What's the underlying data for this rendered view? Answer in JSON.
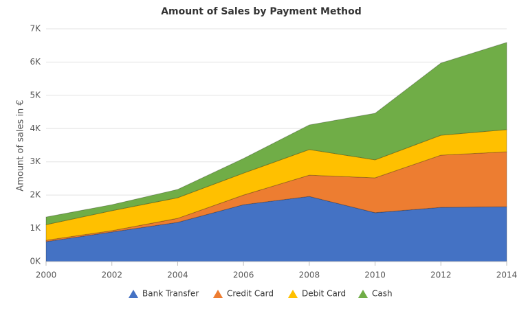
{
  "chart_data": {
    "type": "stacked-area",
    "title": "Amount of Sales by Payment Method",
    "y_label": "Amount of sales in €",
    "x": [
      2000,
      2002,
      2004,
      2006,
      2008,
      2010,
      2012,
      2014
    ],
    "xlim": [
      2000,
      2014
    ],
    "xticks": [
      2000,
      2002,
      2004,
      2006,
      2008,
      2010,
      2012,
      2014
    ],
    "ylim": [
      0,
      7000
    ],
    "yticks": [
      {
        "value": 0,
        "label": "0K"
      },
      {
        "value": 1000,
        "label": "1K"
      },
      {
        "value": 2000,
        "label": "2K"
      },
      {
        "value": 3000,
        "label": "3K"
      },
      {
        "value": 4000,
        "label": "4K"
      },
      {
        "value": 5000,
        "label": "5K"
      },
      {
        "value": 6000,
        "label": "6K"
      },
      {
        "value": 7000,
        "label": "7K"
      }
    ],
    "grid": true,
    "legend": "bottom",
    "series": [
      {
        "name": "Bank Transfer",
        "color": "#4472c4",
        "values": [
          600,
          890,
          1180,
          1710,
          1960,
          1470,
          1630,
          1650
        ]
      },
      {
        "name": "Credit Card",
        "color": "#ed7d31",
        "values": [
          40,
          40,
          120,
          290,
          640,
          1050,
          1570,
          1650
        ]
      },
      {
        "name": "Debit Card",
        "color": "#ffc000",
        "values": [
          470,
          600,
          620,
          660,
          770,
          540,
          600,
          670
        ]
      },
      {
        "name": "Cash",
        "color": "#70ad47",
        "values": [
          230,
          180,
          250,
          440,
          740,
          1400,
          2170,
          2620
        ]
      }
    ]
  }
}
